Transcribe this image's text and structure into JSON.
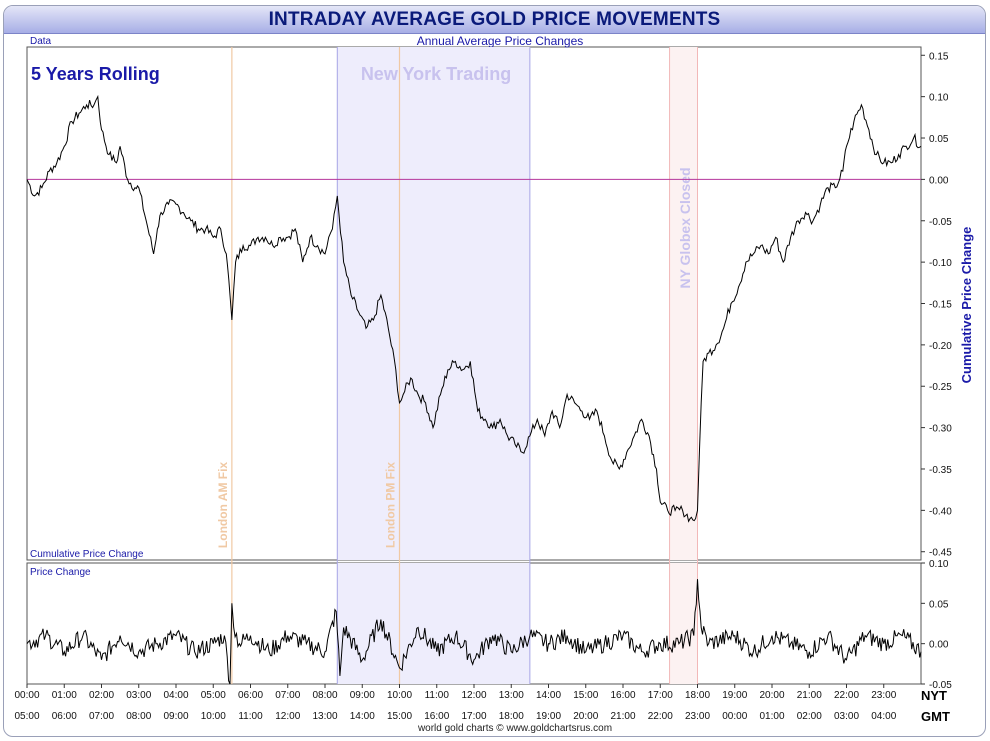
{
  "title": "INTRADAY AVERAGE GOLD PRICE MOVEMENTS",
  "footer": "world gold charts © www.goldchartsrus.com",
  "colors": {
    "title": "#0a1a7a",
    "axis_label": "#1a1aa8",
    "zero_line": "#b4359b",
    "session_fill": "#eeedfc",
    "fix_line": "#f0c9a4",
    "globex_fill": "#fcf2f2"
  },
  "chart_data": [
    {
      "type": "line",
      "panel": "main",
      "corner_label": "Data",
      "subtitle": "Annual Average Price Changes",
      "legend_text": "5 Years Rolling",
      "series_label": "Cumulative Price Change",
      "ylabel": "Cumulative Price Change",
      "ylim": [
        -0.46,
        0.16
      ],
      "yticks": [
        "0.15",
        "0.10",
        "0.05",
        "0.00",
        "-0.05",
        "-0.10",
        "-0.15",
        "-0.20",
        "-0.25",
        "-0.30",
        "-0.35",
        "-0.40",
        "-0.45"
      ],
      "xlim": [
        0,
        24
      ],
      "annotations": [
        {
          "text": "New York Trading",
          "type": "shaded-region",
          "x0": 8.33,
          "x1": 13.5
        },
        {
          "text": "London AM Fix",
          "type": "vline",
          "x": 5.5
        },
        {
          "text": "London PM Fix",
          "type": "vline",
          "x": 10.0
        },
        {
          "text": "NY Globex Closed",
          "type": "shaded-region",
          "x0": 17.25,
          "x1": 18.0
        }
      ],
      "x": [
        0,
        0.2,
        0.4,
        0.6,
        0.8,
        1.0,
        1.2,
        1.4,
        1.6,
        1.8,
        1.9,
        2.0,
        2.2,
        2.4,
        2.5,
        2.7,
        2.9,
        3.0,
        3.2,
        3.4,
        3.5,
        3.6,
        3.8,
        4.0,
        4.2,
        4.4,
        4.6,
        4.8,
        5.0,
        5.2,
        5.35,
        5.45,
        5.5,
        5.6,
        5.8,
        6.0,
        6.2,
        6.4,
        6.6,
        6.8,
        7.0,
        7.2,
        7.4,
        7.6,
        7.8,
        8.0,
        8.1,
        8.2,
        8.33,
        8.5,
        8.7,
        8.9,
        9.1,
        9.3,
        9.5,
        9.7,
        9.9,
        10.0,
        10.1,
        10.3,
        10.5,
        10.7,
        10.9,
        11.1,
        11.3,
        11.5,
        11.7,
        11.9,
        12.1,
        12.3,
        12.5,
        12.7,
        12.9,
        13.1,
        13.3,
        13.5,
        13.7,
        13.9,
        14.1,
        14.3,
        14.5,
        14.7,
        14.9,
        15.1,
        15.3,
        15.5,
        15.7,
        15.9,
        16.1,
        16.3,
        16.5,
        16.7,
        16.9,
        17.0,
        17.2,
        17.4,
        17.6,
        17.8,
        17.95,
        18.0,
        18.05,
        18.15,
        18.3,
        18.5,
        18.7,
        18.9,
        19.1,
        19.3,
        19.5,
        19.7,
        19.9,
        20.1,
        20.3,
        20.5,
        20.7,
        20.9,
        21.1,
        21.3,
        21.5,
        21.7,
        21.9,
        22.0,
        22.2,
        22.4,
        22.6,
        22.8,
        23.0,
        23.2,
        23.4,
        23.6,
        23.8,
        24.0
      ],
      "y": [
        0.0,
        -0.02,
        -0.01,
        0.01,
        0.02,
        0.04,
        0.07,
        0.08,
        0.09,
        0.09,
        0.1,
        0.06,
        0.03,
        0.02,
        0.04,
        0.0,
        -0.01,
        -0.01,
        -0.05,
        -0.09,
        -0.06,
        -0.04,
        -0.03,
        -0.03,
        -0.04,
        -0.05,
        -0.06,
        -0.06,
        -0.07,
        -0.06,
        -0.09,
        -0.14,
        -0.17,
        -0.1,
        -0.08,
        -0.08,
        -0.07,
        -0.07,
        -0.08,
        -0.07,
        -0.07,
        -0.06,
        -0.1,
        -0.07,
        -0.08,
        -0.09,
        -0.07,
        -0.06,
        -0.02,
        -0.1,
        -0.14,
        -0.16,
        -0.18,
        -0.17,
        -0.14,
        -0.18,
        -0.23,
        -0.27,
        -0.26,
        -0.24,
        -0.26,
        -0.27,
        -0.3,
        -0.26,
        -0.23,
        -0.22,
        -0.23,
        -0.22,
        -0.28,
        -0.29,
        -0.3,
        -0.29,
        -0.31,
        -0.32,
        -0.33,
        -0.31,
        -0.29,
        -0.31,
        -0.28,
        -0.3,
        -0.26,
        -0.27,
        -0.28,
        -0.29,
        -0.28,
        -0.31,
        -0.34,
        -0.35,
        -0.33,
        -0.31,
        -0.29,
        -0.31,
        -0.35,
        -0.39,
        -0.4,
        -0.4,
        -0.4,
        -0.41,
        -0.41,
        -0.4,
        -0.33,
        -0.22,
        -0.21,
        -0.2,
        -0.18,
        -0.15,
        -0.13,
        -0.1,
        -0.09,
        -0.08,
        -0.09,
        -0.07,
        -0.1,
        -0.07,
        -0.05,
        -0.04,
        -0.05,
        -0.03,
        -0.01,
        -0.01,
        0.01,
        0.04,
        0.07,
        0.09,
        0.06,
        0.03,
        0.02,
        0.02,
        0.03,
        0.04,
        0.05,
        0.04
      ]
    },
    {
      "type": "line",
      "panel": "sub",
      "series_label": "Price Change",
      "ylim": [
        -0.05,
        0.1
      ],
      "yticks": [
        "0.10",
        "0.05",
        "0.00",
        "-0.05"
      ],
      "xlim": [
        0,
        24
      ],
      "x": [
        0,
        0.5,
        1.0,
        1.5,
        2.0,
        2.5,
        3.0,
        3.5,
        4.0,
        4.5,
        5.0,
        5.3,
        5.45,
        5.5,
        5.55,
        5.7,
        6.0,
        6.5,
        7.0,
        7.5,
        8.0,
        8.3,
        8.4,
        8.5,
        9.0,
        9.5,
        10.0,
        10.5,
        11.0,
        11.5,
        12.0,
        12.5,
        13.0,
        13.5,
        14.0,
        14.5,
        15.0,
        15.5,
        16.0,
        16.5,
        17.0,
        17.5,
        17.9,
        18.0,
        18.1,
        18.3,
        19.0,
        19.5,
        20.0,
        20.5,
        21.0,
        21.5,
        22.0,
        22.5,
        23.0,
        23.5,
        24.0
      ],
      "y": [
        0.0,
        0.01,
        -0.01,
        0.01,
        -0.02,
        0.01,
        -0.01,
        0.0,
        0.01,
        -0.01,
        0.0,
        0.01,
        -0.05,
        0.05,
        0.02,
        0.0,
        0.01,
        -0.01,
        0.01,
        0.0,
        -0.01,
        0.04,
        -0.04,
        0.02,
        -0.02,
        0.03,
        -0.03,
        0.02,
        -0.01,
        0.01,
        -0.02,
        0.01,
        -0.01,
        0.01,
        0.0,
        0.01,
        -0.01,
        0.0,
        0.01,
        -0.01,
        0.0,
        0.0,
        0.01,
        0.08,
        0.02,
        0.0,
        0.01,
        -0.01,
        0.01,
        0.0,
        -0.01,
        0.01,
        -0.02,
        0.01,
        0.0,
        0.01,
        -0.01
      ]
    }
  ],
  "x_axis": {
    "nyt_label": "NYT",
    "gmt_label": "GMT",
    "nyt_ticks": [
      "00:00",
      "01:00",
      "02:00",
      "03:00",
      "04:00",
      "05:00",
      "06:00",
      "07:00",
      "08:00",
      "09:00",
      "10:00",
      "11:00",
      "12:00",
      "13:00",
      "14:00",
      "15:00",
      "16:00",
      "17:00",
      "18:00",
      "19:00",
      "20:00",
      "21:00",
      "22:00",
      "23:00"
    ],
    "gmt_ticks": [
      "05:00",
      "06:00",
      "07:00",
      "08:00",
      "09:00",
      "10:00",
      "11:00",
      "12:00",
      "13:00",
      "14:00",
      "15:00",
      "16:00",
      "17:00",
      "18:00",
      "19:00",
      "20:00",
      "21:00",
      "22:00",
      "23:00",
      "00:00",
      "01:00",
      "02:00",
      "03:00",
      "04:00"
    ]
  }
}
